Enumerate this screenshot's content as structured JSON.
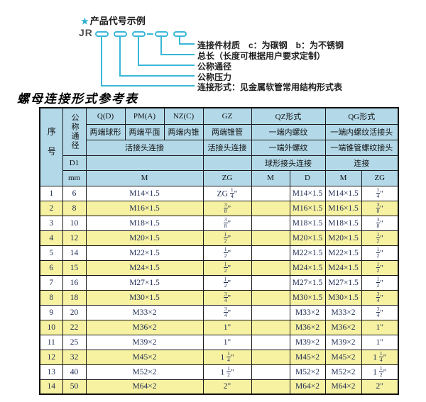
{
  "diagram": {
    "star_icon": "★",
    "heading": "产品代号示例",
    "code_prefix": "JR",
    "labels": [
      "连接件材质　c：为碳钢　b：为不锈钢",
      "总长（长度可根据用户要求定制）",
      "公称通径",
      "公称压力",
      "连接形式：见金属软管常用结构形式表"
    ]
  },
  "table": {
    "title": "螺母连接形式参考表",
    "header": {
      "col_seq": "序号",
      "col_dn": "公称通径",
      "r1": [
        "Q(D)",
        "PM(A)",
        "NZ(C)",
        "GZ",
        "QZ形式",
        "QG形式"
      ],
      "r2": [
        "两端球形",
        "两端平面",
        "两端内锥",
        "两端锥管",
        "一端内螺纹",
        "一端内螺纹活接头"
      ],
      "r3": [
        "活接头连接",
        "活接头连接",
        "一端外螺纹",
        "一端锥管螺纹接头"
      ],
      "r4": [
        "D1",
        "球形接头连接",
        "连接"
      ],
      "r5": [
        "mm",
        "M",
        "ZG",
        "M",
        "D",
        "M",
        "ZG"
      ]
    },
    "rows": [
      {
        "seq": "1",
        "dn": "6",
        "m": "M14×1.5",
        "zg_gz": "ZG 1/4\"",
        "qz_m": "",
        "qz_d": "M14×1.5",
        "qg_m": "M14×1.5",
        "qg_zg": "1/4\""
      },
      {
        "seq": "2",
        "dn": "8",
        "m": "M16×1.5",
        "zg_gz": "3/8\"",
        "qz_m": "",
        "qz_d": "M16×1.5",
        "qg_m": "M16×1.5",
        "qg_zg": "3/8\""
      },
      {
        "seq": "3",
        "dn": "10",
        "m": "M18×1.5",
        "zg_gz": "3/8\"",
        "qz_m": "",
        "qz_d": "M18×1.5",
        "qg_m": "M18×1.5",
        "qg_zg": "3/8\""
      },
      {
        "seq": "4",
        "dn": "12",
        "m": "M20×1.5",
        "zg_gz": "1/2\"",
        "qz_m": "",
        "qz_d": "M20×1.5",
        "qg_m": "M20×1.5",
        "qg_zg": "1/2\""
      },
      {
        "seq": "5",
        "dn": "14",
        "m": "M22×1.5",
        "zg_gz": "1/2\"",
        "qz_m": "",
        "qz_d": "M22×1.5",
        "qg_m": "M22×1.5",
        "qg_zg": "1/2\""
      },
      {
        "seq": "6",
        "dn": "15",
        "m": "M24×1.5",
        "zg_gz": "1/2\"",
        "qz_m": "",
        "qz_d": "M24×1.5",
        "qg_m": "M24×1.5",
        "qg_zg": "1/2\""
      },
      {
        "seq": "7",
        "dn": "16",
        "m": "M27×1.5",
        "zg_gz": "1/2\"",
        "qz_m": "",
        "qz_d": "M27×1.5",
        "qg_m": "M27×1.5",
        "qg_zg": "1/2\""
      },
      {
        "seq": "8",
        "dn": "18",
        "m": "M30×1.5",
        "zg_gz": "3/4\"",
        "qz_m": "",
        "qz_d": "M30×1.5",
        "qg_m": "M30×1.5",
        "qg_zg": "3/4\""
      },
      {
        "seq": "9",
        "dn": "20",
        "m": "M33×2",
        "zg_gz": "3/4\"",
        "qz_m": "",
        "qz_d": "M33×2",
        "qg_m": "M33×2",
        "qg_zg": "3/4\""
      },
      {
        "seq": "10",
        "dn": "22",
        "m": "M36×2",
        "zg_gz": "1\"",
        "qz_m": "",
        "qz_d": "M36×2",
        "qg_m": "M36×2",
        "qg_zg": "1\""
      },
      {
        "seq": "11",
        "dn": "25",
        "m": "M39×2",
        "zg_gz": "1\"",
        "qz_m": "",
        "qz_d": "M39×2",
        "qg_m": "M39×2",
        "qg_zg": "1\""
      },
      {
        "seq": "12",
        "dn": "32",
        "m": "M45×2",
        "zg_gz": "1 1/4\"",
        "qz_m": "",
        "qz_d": "M45×2",
        "qg_m": "M45×2",
        "qg_zg": "1 1/4\""
      },
      {
        "seq": "13",
        "dn": "40",
        "m": "M52×2",
        "zg_gz": "1 1/2\"",
        "qz_m": "",
        "qz_d": "M52×2",
        "qg_m": "M52×2",
        "qg_zg": "1 1/2\""
      },
      {
        "seq": "14",
        "dn": "50",
        "m": "M64×2",
        "zg_gz": "2\"",
        "qz_m": "",
        "qz_d": "M64×2",
        "qg_m": "M64×2",
        "qg_zg": "2\""
      }
    ]
  },
  "colors": {
    "accent_cyan": "#3ab7d8",
    "header_blue": "#b3d9e9",
    "row_yellow": "#f7f2a2",
    "border_dark": "#1a1a1a"
  }
}
